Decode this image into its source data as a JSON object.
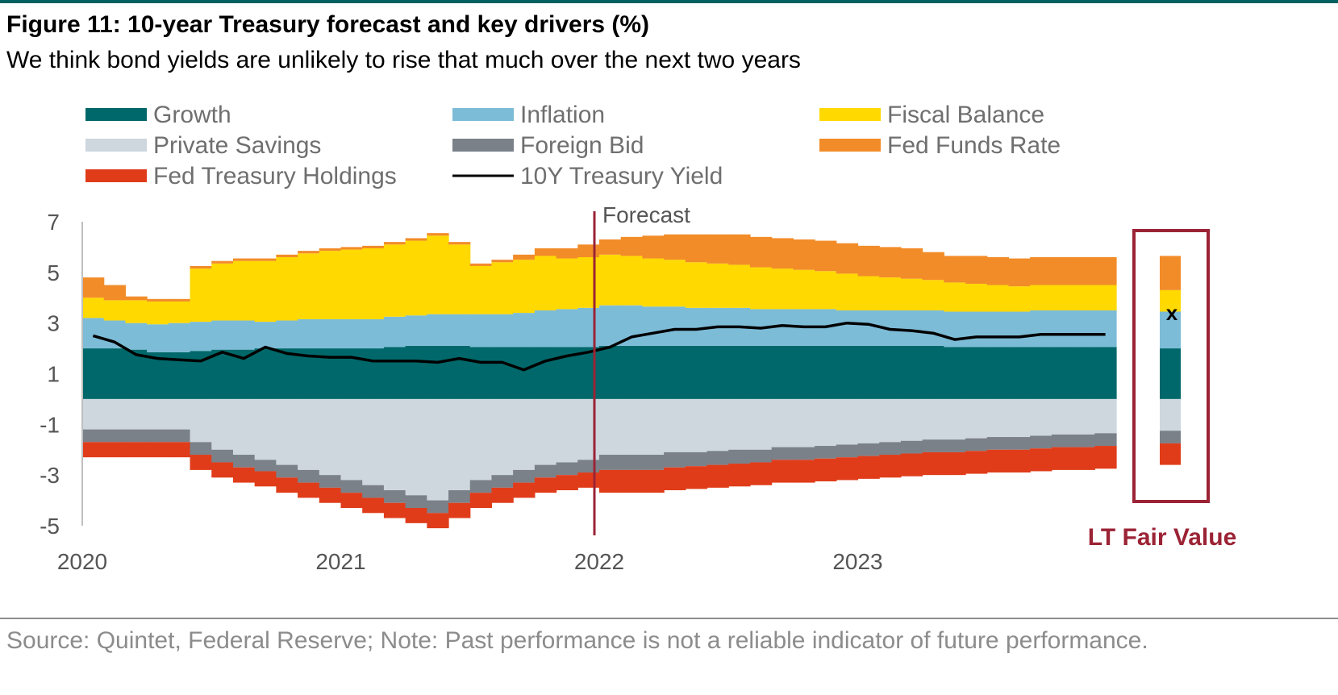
{
  "title": "Figure 11: 10-year Treasury forecast and key drivers (%)",
  "subtitle": "We think bond yields are unlikely to rise that much over the next two years",
  "source": "Source: Quintet, Federal Reserve; Note: Past performance is not a reliable indicator of future performance.",
  "chart_data": {
    "type": "bar",
    "stacked": true,
    "ylim": [
      -5,
      7
    ],
    "yticks": [
      "7",
      "5",
      "3",
      "1",
      "-1",
      "-3",
      "-5"
    ],
    "xticks": [
      "2020",
      "2021",
      "2022",
      "2023"
    ],
    "forecast_label": "Forecast",
    "forecast_start": "2022-01",
    "fair_value_label": "LT Fair Value",
    "fair_value_marker": "x",
    "legend_placement": "top",
    "categories": [
      "2020-01",
      "2020-02",
      "2020-03",
      "2020-04",
      "2020-05",
      "2020-06",
      "2020-07",
      "2020-08",
      "2020-09",
      "2020-10",
      "2020-11",
      "2020-12",
      "2021-01",
      "2021-02",
      "2021-03",
      "2021-04",
      "2021-05",
      "2021-06",
      "2021-07",
      "2021-08",
      "2021-09",
      "2021-10",
      "2021-11",
      "2021-12",
      "2022-01",
      "2022-02",
      "2022-03",
      "2022-04",
      "2022-05",
      "2022-06",
      "2022-07",
      "2022-08",
      "2022-09",
      "2022-10",
      "2022-11",
      "2022-12",
      "2023-01",
      "2023-02",
      "2023-03",
      "2023-04",
      "2023-05",
      "2023-06",
      "2023-07",
      "2023-08",
      "2023-09",
      "2023-10",
      "2023-11",
      "2023-12"
    ],
    "series": [
      {
        "name": "Growth",
        "color": "#00686a",
        "values": [
          2.0,
          2.0,
          1.95,
          1.85,
          1.85,
          1.9,
          1.95,
          1.95,
          2.0,
          2.0,
          2.0,
          2.0,
          2.0,
          2.0,
          2.05,
          2.1,
          2.1,
          2.1,
          2.05,
          2.05,
          2.05,
          2.05,
          2.05,
          2.05,
          2.1,
          2.1,
          2.1,
          2.1,
          2.1,
          2.1,
          2.1,
          2.1,
          2.1,
          2.1,
          2.1,
          2.1,
          2.1,
          2.1,
          2.1,
          2.1,
          2.05,
          2.05,
          2.05,
          2.05,
          2.05,
          2.05,
          2.05,
          2.05
        ]
      },
      {
        "name": "Inflation",
        "color": "#7dbcd7",
        "values": [
          1.2,
          1.1,
          1.05,
          1.1,
          1.15,
          1.15,
          1.15,
          1.15,
          1.05,
          1.1,
          1.15,
          1.15,
          1.15,
          1.15,
          1.2,
          1.2,
          1.25,
          1.25,
          1.3,
          1.3,
          1.35,
          1.45,
          1.5,
          1.55,
          1.6,
          1.6,
          1.55,
          1.55,
          1.5,
          1.5,
          1.5,
          1.45,
          1.45,
          1.45,
          1.45,
          1.4,
          1.4,
          1.4,
          1.4,
          1.4,
          1.4,
          1.4,
          1.4,
          1.4,
          1.45,
          1.45,
          1.45,
          1.45
        ]
      },
      {
        "name": "Fiscal Balance",
        "color": "#ffd900",
        "values": [
          0.8,
          0.8,
          0.9,
          0.9,
          0.85,
          2.1,
          2.25,
          2.35,
          2.4,
          2.5,
          2.6,
          2.7,
          2.75,
          2.8,
          2.85,
          2.95,
          3.1,
          2.75,
          1.9,
          2.05,
          2.1,
          2.15,
          2.0,
          2.0,
          2.0,
          1.95,
          1.9,
          1.85,
          1.8,
          1.75,
          1.7,
          1.65,
          1.6,
          1.55,
          1.5,
          1.45,
          1.35,
          1.3,
          1.25,
          1.2,
          1.15,
          1.1,
          1.05,
          1.0,
          1.0,
          1.0,
          1.0,
          1.0
        ]
      },
      {
        "name": "Fed Funds Rate",
        "color": "#f28c28",
        "values": [
          0.8,
          0.6,
          0.15,
          0.1,
          0.1,
          0.1,
          0.1,
          0.1,
          0.1,
          0.1,
          0.1,
          0.1,
          0.1,
          0.1,
          0.1,
          0.1,
          0.1,
          0.1,
          0.1,
          0.1,
          0.2,
          0.3,
          0.4,
          0.5,
          0.6,
          0.75,
          0.9,
          1.0,
          1.1,
          1.15,
          1.2,
          1.2,
          1.2,
          1.2,
          1.2,
          1.2,
          1.2,
          1.2,
          1.2,
          1.1,
          1.05,
          1.1,
          1.1,
          1.1,
          1.1,
          1.1,
          1.1,
          1.1
        ]
      },
      {
        "name": "Private Savings",
        "color": "#ced6de",
        "values": [
          -1.2,
          -1.2,
          -1.2,
          -1.2,
          -1.2,
          -1.7,
          -2.0,
          -2.2,
          -2.4,
          -2.6,
          -2.8,
          -3.0,
          -3.2,
          -3.4,
          -3.6,
          -3.8,
          -4.0,
          -3.6,
          -3.2,
          -3.0,
          -2.8,
          -2.6,
          -2.5,
          -2.4,
          -2.2,
          -2.2,
          -2.2,
          -2.1,
          -2.1,
          -2.05,
          -2.0,
          -2.0,
          -1.9,
          -1.9,
          -1.85,
          -1.8,
          -1.75,
          -1.7,
          -1.65,
          -1.6,
          -1.6,
          -1.55,
          -1.5,
          -1.5,
          -1.45,
          -1.4,
          -1.4,
          -1.35
        ]
      },
      {
        "name": "Foreign Bid",
        "color": "#7b8189",
        "values": [
          -0.5,
          -0.5,
          -0.5,
          -0.5,
          -0.5,
          -0.5,
          -0.5,
          -0.5,
          -0.45,
          -0.5,
          -0.5,
          -0.5,
          -0.5,
          -0.5,
          -0.5,
          -0.5,
          -0.5,
          -0.5,
          -0.5,
          -0.5,
          -0.5,
          -0.5,
          -0.5,
          -0.5,
          -0.6,
          -0.6,
          -0.6,
          -0.6,
          -0.55,
          -0.55,
          -0.55,
          -0.5,
          -0.5,
          -0.5,
          -0.5,
          -0.5,
          -0.5,
          -0.5,
          -0.5,
          -0.5,
          -0.5,
          -0.5,
          -0.5,
          -0.5,
          -0.5,
          -0.5,
          -0.5,
          -0.5
        ]
      },
      {
        "name": "Fed Treasury Holdings",
        "color": "#e03c1a",
        "values": [
          -0.6,
          -0.6,
          -0.6,
          -0.6,
          -0.6,
          -0.6,
          -0.6,
          -0.6,
          -0.6,
          -0.6,
          -0.6,
          -0.6,
          -0.6,
          -0.6,
          -0.6,
          -0.6,
          -0.6,
          -0.6,
          -0.6,
          -0.6,
          -0.6,
          -0.6,
          -0.6,
          -0.6,
          -0.9,
          -0.9,
          -0.9,
          -0.9,
          -0.9,
          -0.9,
          -0.9,
          -0.9,
          -0.9,
          -0.9,
          -0.9,
          -0.9,
          -0.9,
          -0.9,
          -0.9,
          -0.9,
          -0.9,
          -0.9,
          -0.9,
          -0.9,
          -0.9,
          -0.9,
          -0.9,
          -0.9
        ]
      },
      {
        "name": "10Y Treasury Yield",
        "color": "#000000",
        "type": "line",
        "values": [
          2.5,
          2.25,
          1.75,
          1.6,
          1.55,
          1.5,
          1.85,
          1.6,
          2.05,
          1.8,
          1.7,
          1.65,
          1.65,
          1.5,
          1.5,
          1.5,
          1.45,
          1.6,
          1.45,
          1.45,
          1.15,
          1.5,
          1.7,
          1.85,
          2.05,
          2.45,
          2.6,
          2.75,
          2.75,
          2.85,
          2.85,
          2.8,
          2.9,
          2.85,
          2.85,
          3.0,
          2.95,
          2.75,
          2.7,
          2.6,
          2.35,
          2.45,
          2.45,
          2.45,
          2.55,
          2.55,
          2.55,
          2.55
        ]
      }
    ],
    "lt_fair_value": {
      "Growth": 2.0,
      "Inflation": 1.45,
      "Fiscal Balance": 0.85,
      "Fed Funds Rate": 1.35,
      "Private Savings": -1.25,
      "Foreign Bid": -0.5,
      "Fed Treasury Holdings": -0.85,
      "10Y Treasury Yield": 3.4
    }
  }
}
